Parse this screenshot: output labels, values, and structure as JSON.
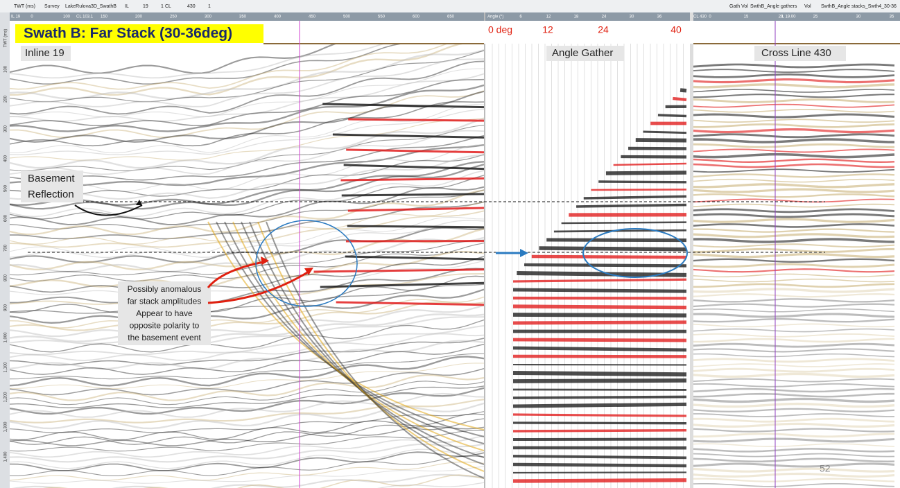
{
  "toolbar": {
    "left": [
      "TWT (ms)",
      "Survey",
      "LakeRulova3D_SwathB",
      "IL",
      "19",
      "1",
      "CL",
      "430",
      "1"
    ],
    "right": [
      "Gath Vol",
      "SwthB_Angle gathers",
      "Vol",
      "SwthB_Angle stacks_Swth4_30-36"
    ]
  },
  "inline_panel": {
    "header": "IL 19",
    "position": "CL 103.1",
    "axis_label": "TWT (ms)",
    "x_ticks": [
      "0",
      "100",
      "150",
      "200",
      "250",
      "300",
      "350",
      "400",
      "450",
      "500",
      "550",
      "600",
      "650"
    ],
    "y_ticks": [
      "100",
      "200",
      "300",
      "400",
      "500",
      "600",
      "700",
      "800",
      "900",
      "1,000",
      "1,100",
      "1,200",
      "1,300",
      "1,400"
    ],
    "title": "Swath B: Far Stack (30-36deg)",
    "label": "Inline 19",
    "basement": [
      "Basement",
      "Reflection"
    ],
    "annotation": [
      "Possibly anomalous",
      "far stack amplitudes",
      "Appear to have",
      "opposite polarity to",
      "the basement event"
    ]
  },
  "gather_panel": {
    "header": "Angle (°)",
    "ticks": [
      "6",
      "12",
      "18",
      "24",
      "30",
      "36"
    ],
    "angles": [
      "0 deg",
      "12",
      "24",
      "40"
    ],
    "label": "Angle Gather"
  },
  "crossline_panel": {
    "header": "CL 430",
    "position": "IL 19.00",
    "ticks": [
      "0",
      "15",
      "20",
      "25",
      "30",
      "35"
    ],
    "label": "Cross Line 430"
  },
  "page_number": "52"
}
